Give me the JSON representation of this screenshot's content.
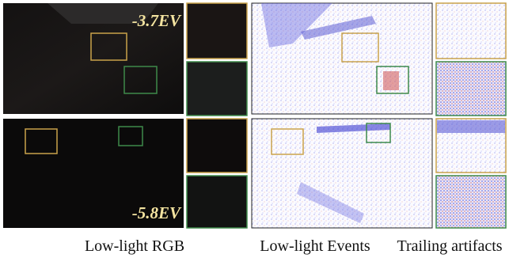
{
  "panels": [
    {
      "label": "-3.7EV"
    },
    {
      "label": "-5.8EV"
    }
  ],
  "captions": [
    "Low-light RGB",
    "Low-light Events",
    "Trailing artifacts"
  ]
}
